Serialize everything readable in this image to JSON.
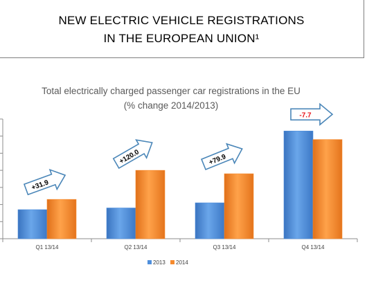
{
  "header": {
    "line1": "NEW ELECTRIC VEHICLE REGISTRATIONS",
    "line2": "IN THE EUROPEAN UNION¹"
  },
  "chart_data": {
    "type": "bar",
    "title": "Total electrically charged passenger car registrations in the EU",
    "subtitle": "(% change 2014/2013)",
    "xlabel": "",
    "ylabel": "",
    "categories": [
      "Q1 13/14",
      "Q2 13/14",
      "Q3 13/14",
      "Q4 13/14"
    ],
    "series": [
      {
        "name": "2013",
        "values": [
          17,
          18,
          21,
          63
        ],
        "color": "#4f8fdc"
      },
      {
        "name": "2014",
        "values": [
          23,
          40,
          38,
          58
        ],
        "color": "#f58a2e"
      }
    ],
    "change_labels": [
      "+31.9",
      "+120.0",
      "+79.9",
      "-7.7"
    ],
    "change_label_colors": [
      "#000000",
      "#000000",
      "#000000",
      "#e8151b"
    ],
    "ylim": [
      0,
      70
    ],
    "y_tick_labels_visible": false,
    "grid": false,
    "legend_position": "bottom-center",
    "colors": {
      "arrow_border": "#4a86b8",
      "axis": "#8c8c8c"
    }
  }
}
